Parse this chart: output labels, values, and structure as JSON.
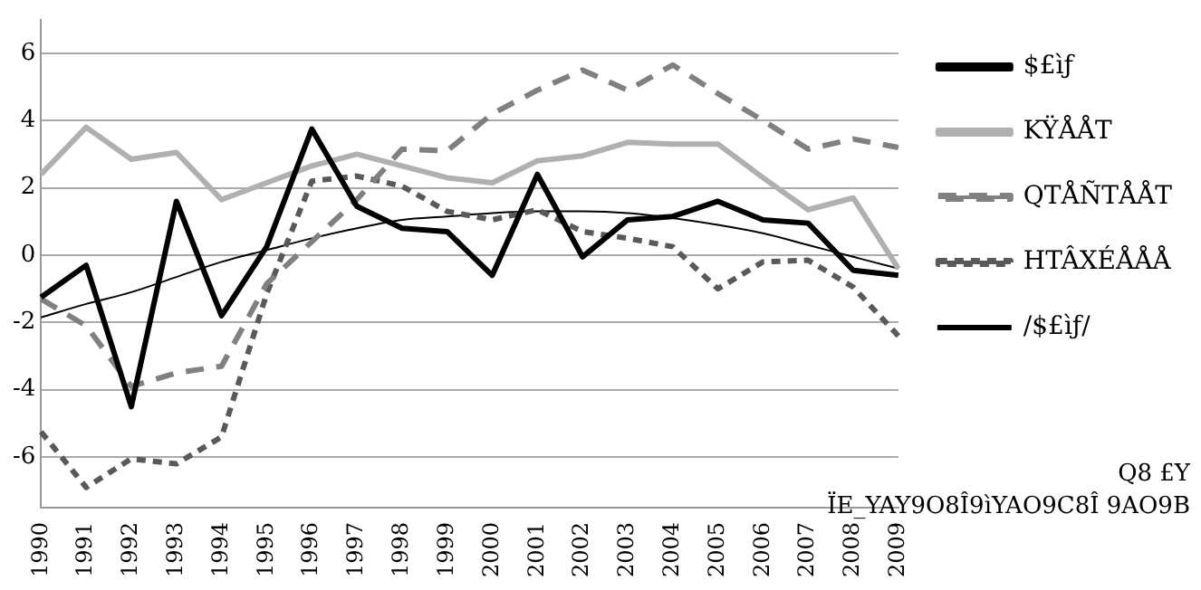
{
  "chart_data": {
    "type": "line",
    "categories": [
      "1990",
      "1991",
      "1992",
      "1993",
      "1994",
      "1995",
      "1996",
      "1997",
      "1998",
      "1999",
      "2000",
      "2001",
      "2002",
      "2003",
      "2004",
      "2005",
      "2006",
      "2007",
      "2008",
      "2009"
    ],
    "series": [
      {
        "name": "$£ìƒ",
        "color": "#000000",
        "line_style": "solid",
        "values": [
          -1.25,
          -0.3,
          -4.5,
          1.6,
          -1.8,
          0.25,
          3.75,
          1.45,
          0.8,
          0.7,
          -0.6,
          2.4,
          -0.05,
          1.05,
          1.15,
          1.6,
          1.05,
          0.95,
          -0.45,
          -0.6
        ]
      },
      {
        "name": "KŸÅÅT",
        "color": "#b0b0b0",
        "line_style": "solid",
        "values": [
          2.4,
          3.8,
          2.85,
          3.05,
          1.65,
          2.15,
          2.65,
          3.0,
          2.65,
          2.3,
          2.15,
          2.8,
          2.95,
          3.35,
          3.3,
          3.3,
          2.3,
          1.35,
          1.7,
          -0.4
        ]
      },
      {
        "name": "QTÅÑTÅÅT",
        "color": "#808080",
        "line_style": "dashed",
        "values": [
          -1.3,
          -2.1,
          -3.9,
          -3.5,
          -3.3,
          -0.85,
          0.4,
          1.65,
          3.15,
          3.1,
          4.2,
          4.9,
          5.5,
          4.9,
          5.65,
          4.8,
          4.0,
          3.15,
          3.45,
          3.2
        ]
      },
      {
        "name": "HTÂXÉÅÅÅ",
        "color": "#595959",
        "line_style": "dotted",
        "values": [
          -5.25,
          -6.9,
          -6.05,
          -6.2,
          -5.4,
          -1.15,
          2.2,
          2.35,
          2.05,
          1.3,
          1.05,
          1.35,
          0.7,
          0.5,
          0.25,
          -1.0,
          -0.2,
          -0.15,
          -0.95,
          -2.4
        ]
      },
      {
        "name": "/$£ìƒ/",
        "color": "#000000",
        "line_style": "solid",
        "values": [
          -1.85,
          -1.45,
          -1.1,
          -0.65,
          -0.2,
          0.15,
          0.5,
          0.8,
          1.05,
          1.15,
          1.25,
          1.3,
          1.3,
          1.25,
          1.1,
          0.9,
          0.65,
          0.3,
          -0.05,
          -0.4
        ]
      }
    ],
    "ylim": [
      -7.5,
      7
    ],
    "yticks": [
      -6,
      -4,
      -2,
      0,
      2,
      4,
      6
    ],
    "grid": "y",
    "legend": "right",
    "marker": "none",
    "annotations": [
      "Q8 £Y",
      "ÏE_YAY9O8Î9ìYAO9C8Î 9AO9B"
    ]
  }
}
